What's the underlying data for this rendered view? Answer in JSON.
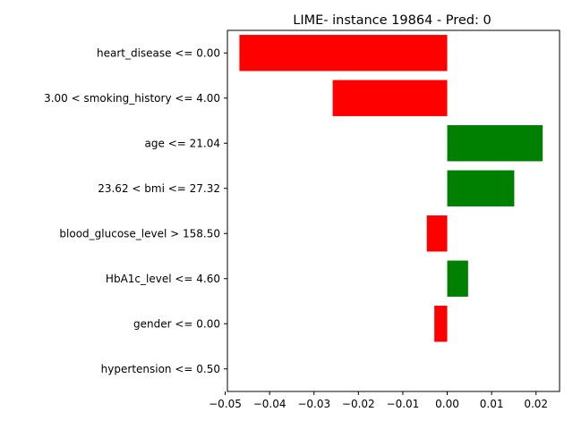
{
  "chart_data": {
    "type": "bar",
    "orientation": "horizontal",
    "title": "LIME- instance 19864 - Pred: 0",
    "xlabel": "",
    "ylabel": "",
    "categories": [
      "heart_disease <= 0.00",
      "3.00 < smoking_history <= 4.00",
      "age <= 21.04",
      "23.62 < bmi <= 27.32",
      "blood_glucose_level > 158.50",
      "HbA1c_level <= 4.60",
      "gender <= 0.00",
      "hypertension <= 0.50"
    ],
    "values": [
      -0.0468,
      -0.0258,
      0.0215,
      0.0151,
      -0.0046,
      0.0047,
      -0.0029,
      0.0
    ],
    "xlim": [
      -0.0495,
      0.0253
    ],
    "xticks": [
      -0.05,
      -0.04,
      -0.03,
      -0.02,
      -0.01,
      0.0,
      0.01,
      0.02
    ],
    "xtick_labels": [
      "−0.05",
      "−0.04",
      "−0.03",
      "−0.02",
      "−0.01",
      "0.00",
      "0.01",
      "0.02"
    ],
    "grid": false,
    "colors": {
      "positive": "#008000",
      "negative": "#ff0000"
    }
  }
}
